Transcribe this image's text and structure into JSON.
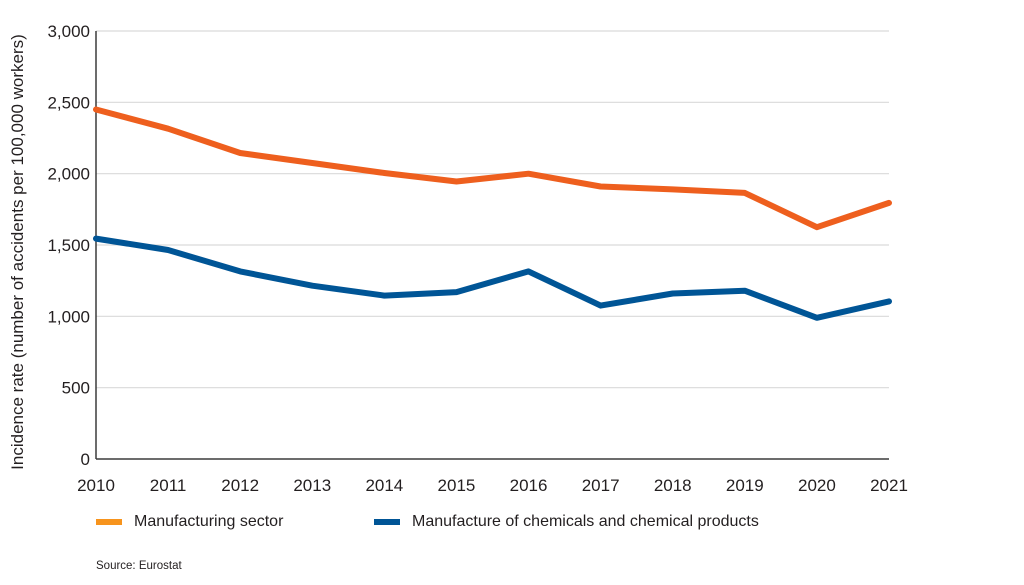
{
  "chart_data": {
    "type": "line",
    "title": "",
    "xlabel": "",
    "ylabel": "Incidence rate (number of accidents per 100,000 workers)",
    "x": [
      2010,
      2011,
      2012,
      2013,
      2014,
      2015,
      2016,
      2017,
      2018,
      2019,
      2020,
      2021
    ],
    "x_tick_labels": [
      "2010",
      "2011",
      "2012",
      "2013",
      "2014",
      "2015",
      "2016",
      "2017",
      "2018",
      "2019",
      "2020",
      "2021"
    ],
    "ylim": [
      0,
      3000
    ],
    "y_ticks": [
      0,
      500,
      1000,
      1500,
      2000,
      2500,
      3000
    ],
    "y_tick_labels": [
      "0",
      "500",
      "1,000",
      "1,500",
      "2,000",
      "2,500",
      "3,000"
    ],
    "grid": true,
    "legend_position": "bottom",
    "series": [
      {
        "name": "Manufacturing sector",
        "color": "#ee5f1e",
        "legend_color": "#f7941d",
        "values": [
          2450,
          2315,
          2145,
          2075,
          2005,
          1945,
          2000,
          1910,
          1890,
          1865,
          1625,
          1795
        ]
      },
      {
        "name": "Manufacture of chemicals and chemical products",
        "color": "#005596",
        "legend_color": "#005596",
        "values": [
          1545,
          1465,
          1315,
          1215,
          1145,
          1170,
          1315,
          1075,
          1160,
          1180,
          990,
          1105
        ]
      }
    ]
  },
  "source": "Source: Eurostat"
}
